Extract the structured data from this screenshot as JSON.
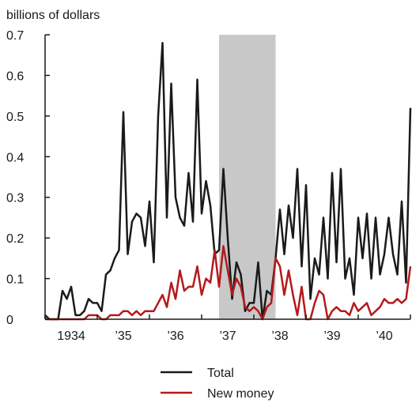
{
  "chart_data": {
    "type": "line",
    "units_label": "billions of dollars",
    "x_start_month": "1934-01",
    "x_end_month": "1941-01",
    "x_tick_labels": [
      {
        "month": "1934-01",
        "label": "1934"
      },
      {
        "month": "1935-01",
        "label": "’35"
      },
      {
        "month": "1936-01",
        "label": "’36"
      },
      {
        "month": "1937-01",
        "label": "’37"
      },
      {
        "month": "1938-01",
        "label": "’38"
      },
      {
        "month": "1939-01",
        "label": "’39"
      },
      {
        "month": "1940-01",
        "label": "’40"
      }
    ],
    "ylim": [
      0,
      0.7
    ],
    "y_ticks": [
      {
        "value": 0,
        "label": "0"
      },
      {
        "value": 0.1,
        "label": "0.1"
      },
      {
        "value": 0.2,
        "label": "0.2"
      },
      {
        "value": 0.3,
        "label": "0.3"
      },
      {
        "value": 0.4,
        "label": "0.4"
      },
      {
        "value": 0.5,
        "label": "0.5"
      },
      {
        "value": 0.6,
        "label": "0.6"
      },
      {
        "value": 0.7,
        "label": "0.7"
      }
    ],
    "shaded_period": {
      "start": "1937-05",
      "end": "1938-06",
      "color": "#c8c8c8"
    },
    "legend_position": "bottom-center",
    "series": [
      {
        "name": "Total",
        "color": "#1a1a1a",
        "start_month": "1934-01",
        "values": [
          0.01,
          0.0,
          0.0,
          0.0,
          0.07,
          0.05,
          0.08,
          0.01,
          0.01,
          0.02,
          0.05,
          0.04,
          0.04,
          0.02,
          0.11,
          0.12,
          0.15,
          0.17,
          0.51,
          0.16,
          0.24,
          0.26,
          0.25,
          0.18,
          0.29,
          0.14,
          0.5,
          0.68,
          0.25,
          0.58,
          0.3,
          0.25,
          0.23,
          0.36,
          0.24,
          0.59,
          0.26,
          0.34,
          0.28,
          0.16,
          0.17,
          0.37,
          0.2,
          0.05,
          0.14,
          0.11,
          0.02,
          0.04,
          0.04,
          0.14,
          0.0,
          0.07,
          0.06,
          0.15,
          0.27,
          0.16,
          0.28,
          0.2,
          0.37,
          0.13,
          0.33,
          0.05,
          0.15,
          0.11,
          0.25,
          0.1,
          0.36,
          0.14,
          0.37,
          0.1,
          0.15,
          0.06,
          0.25,
          0.15,
          0.26,
          0.1,
          0.25,
          0.11,
          0.16,
          0.25,
          0.16,
          0.11,
          0.29,
          0.09,
          0.52
        ]
      },
      {
        "name": "New money",
        "color": "#b5191b",
        "start_month": "1934-01",
        "values": [
          0.0,
          0.0,
          0.0,
          0.0,
          0.0,
          0.0,
          0.0,
          0.0,
          0.0,
          0.0,
          0.01,
          0.01,
          0.01,
          0.0,
          0.0,
          0.01,
          0.01,
          0.01,
          0.02,
          0.02,
          0.01,
          0.02,
          0.01,
          0.02,
          0.02,
          0.02,
          0.04,
          0.06,
          0.03,
          0.09,
          0.05,
          0.12,
          0.07,
          0.08,
          0.08,
          0.13,
          0.06,
          0.1,
          0.09,
          0.17,
          0.08,
          0.18,
          0.12,
          0.06,
          0.1,
          0.08,
          0.03,
          0.02,
          0.03,
          0.02,
          0.0,
          0.03,
          0.04,
          0.15,
          0.13,
          0.06,
          0.12,
          0.06,
          0.01,
          0.08,
          0.0,
          0.0,
          0.04,
          0.07,
          0.06,
          0.0,
          0.02,
          0.03,
          0.02,
          0.02,
          0.01,
          0.04,
          0.02,
          0.03,
          0.04,
          0.01,
          0.02,
          0.03,
          0.05,
          0.04,
          0.04,
          0.05,
          0.04,
          0.05,
          0.13
        ]
      }
    ]
  }
}
